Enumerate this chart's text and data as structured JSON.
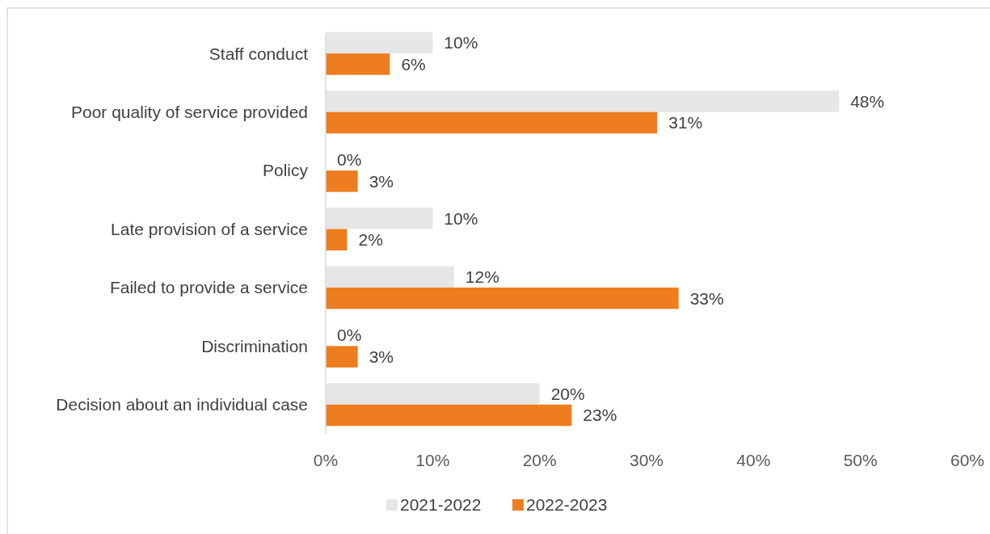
{
  "chart_data": {
    "type": "bar",
    "orientation": "horizontal",
    "categories": [
      "Staff conduct",
      "Poor quality of service provided",
      "Policy",
      "Late provision of a service",
      "Failed to provide a service",
      "Discrimination",
      "Decision about an individual case"
    ],
    "series": [
      {
        "name": "2021-2022",
        "color": "#e7e6e6",
        "values": [
          10,
          48,
          0,
          10,
          12,
          0,
          20
        ],
        "value_labels": [
          "10%",
          "48%",
          "0%",
          "10%",
          "12%",
          "0%",
          "20%"
        ]
      },
      {
        "name": "2022-2023",
        "color": "#ed7d1f",
        "values": [
          6,
          31,
          3,
          2,
          33,
          3,
          23
        ],
        "value_labels": [
          "6%",
          "31%",
          "3%",
          "2%",
          "33%",
          "3%",
          "23%"
        ]
      }
    ],
    "xlim": [
      0,
      60
    ],
    "xticks": [
      {
        "value": 0,
        "label": "0%"
      },
      {
        "value": 10,
        "label": "10%"
      },
      {
        "value": 20,
        "label": "20%"
      },
      {
        "value": 30,
        "label": "30%"
      },
      {
        "value": 40,
        "label": "40%"
      },
      {
        "value": 50,
        "label": "50%"
      },
      {
        "value": 60,
        "label": "60%"
      }
    ],
    "grid": false,
    "legend": "bottom"
  }
}
